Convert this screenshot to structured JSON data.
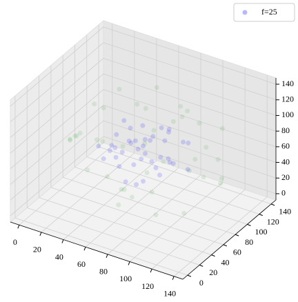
{
  "chart_data": {
    "type": "scatter3d",
    "xlim": [
      -8,
      148
    ],
    "ylim": [
      -8,
      148
    ],
    "zlim": [
      -8,
      148
    ],
    "xticks": [
      0,
      20,
      40,
      60,
      80,
      100,
      120,
      140
    ],
    "yticks": [
      0,
      20,
      40,
      60,
      80,
      100,
      120,
      140
    ],
    "zticks": [
      0,
      20,
      40,
      60,
      80,
      100,
      120,
      140
    ],
    "grid": true,
    "legend": "upper right",
    "series": [
      {
        "color": "#2ca02c",
        "alpha": 0.12,
        "x": [
          10,
          20,
          130,
          125,
          70,
          65,
          30,
          110,
          90,
          40,
          15,
          120,
          60,
          80,
          100,
          25,
          50,
          135,
          75,
          45,
          95,
          105,
          35,
          55,
          85,
          115,
          70,
          20,
          128,
          60,
          40,
          100,
          88,
          12,
          72,
          58,
          110,
          30,
          140,
          66
        ],
        "y": [
          70,
          40,
          60,
          100,
          10,
          130,
          110,
          30,
          120,
          20,
          90,
          110,
          70,
          15,
          80,
          60,
          125,
          75,
          135,
          50,
          45,
          20,
          95,
          30,
          105,
          55,
          60,
          85,
          40,
          95,
          130,
          120,
          5,
          55,
          25,
          115,
          90,
          30,
          70,
          80
        ],
        "z": [
          60,
          80,
          70,
          40,
          75,
          65,
          30,
          100,
          35,
          110,
          90,
          95,
          5,
          60,
          120,
          30,
          50,
          85,
          80,
          125,
          15,
          65,
          115,
          100,
          110,
          20,
          135,
          50,
          90,
          20,
          70,
          55,
          70,
          65,
          30,
          115,
          110,
          95,
          60,
          70
        ]
      },
      {
        "name": "f=25",
        "color": "#0000ff",
        "alpha": 0.14,
        "x": [
          50,
          60,
          70,
          80,
          90,
          40,
          100,
          55,
          75,
          85,
          65,
          45,
          95,
          70,
          60,
          80,
          50,
          90,
          35,
          105,
          70,
          75,
          60,
          85,
          55,
          95,
          65,
          45,
          80,
          70,
          100,
          40,
          58,
          82,
          68,
          72,
          48,
          92,
          62,
          78
        ],
        "y": [
          60,
          80,
          70,
          55,
          75,
          70,
          65,
          45,
          90,
          85,
          50,
          95,
          60,
          30,
          105,
          40,
          75,
          100,
          60,
          80,
          70,
          60,
          65,
          70,
          85,
          45,
          110,
          50,
          95,
          35,
          90,
          80,
          72,
          62,
          58,
          78,
          66,
          74,
          88,
          52
        ],
        "z": [
          70,
          60,
          75,
          80,
          65,
          55,
          70,
          85,
          50,
          90,
          40,
          70,
          100,
          75,
          60,
          50,
          95,
          70,
          65,
          55,
          30,
          110,
          80,
          45,
          65,
          75,
          70,
          60,
          85,
          90,
          80,
          40,
          72,
          66,
          58,
          78,
          82,
          62,
          68,
          74
        ]
      }
    ]
  }
}
